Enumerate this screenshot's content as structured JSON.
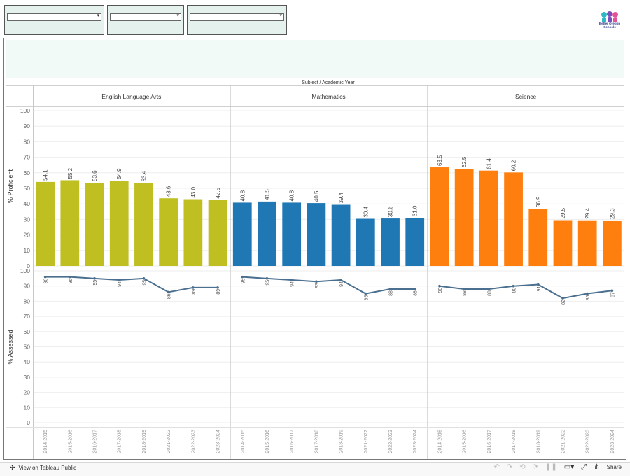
{
  "filters": [
    {
      "name": "filter-1",
      "value": ""
    },
    {
      "name": "filter-2",
      "value": ""
    },
    {
      "name": "filter-3",
      "value": ""
    }
  ],
  "logo": {
    "text": "Better Oregon Schools"
  },
  "footer": {
    "view_label": "View on Tableau Public",
    "share_label": "Share"
  },
  "colors": {
    "ela": "#bfbf22",
    "math": "#1f77b4",
    "science": "#ff7f0e",
    "line": "#4a6f8f",
    "header_band": "#f1faf7"
  },
  "chart_data": {
    "type": "bar",
    "title": "Subject / Academic Year",
    "categories": [
      "2014-2015",
      "2015-2016",
      "2016-2017",
      "2017-2018",
      "2018-2019",
      "2021-2022",
      "2022-2023",
      "2023-2024"
    ],
    "panels": [
      "English Language Arts",
      "Mathematics",
      "Science"
    ],
    "top": {
      "ylabel": "% Proficient",
      "ylim": [
        0,
        100
      ],
      "ticks": [
        0,
        10,
        20,
        30,
        40,
        50,
        60,
        70,
        80,
        90,
        100
      ],
      "series": [
        {
          "name": "English Language Arts",
          "values": [
            54.1,
            55.2,
            53.6,
            54.9,
            53.4,
            43.6,
            43.0,
            42.5
          ]
        },
        {
          "name": "Mathematics",
          "values": [
            40.8,
            41.5,
            40.8,
            40.5,
            39.4,
            30.4,
            30.6,
            31.0
          ]
        },
        {
          "name": "Science",
          "values": [
            63.5,
            62.5,
            61.4,
            60.2,
            36.9,
            29.5,
            29.4,
            29.3
          ]
        }
      ]
    },
    "bottom": {
      "type": "line",
      "ylabel": "% Assessed",
      "ylim": [
        0,
        100
      ],
      "ticks": [
        0,
        10,
        20,
        30,
        40,
        50,
        60,
        70,
        80,
        90,
        100
      ],
      "series": [
        {
          "name": "English Language Arts",
          "values": [
            96,
            96,
            95,
            94,
            95,
            86,
            89,
            89
          ],
          "labels": [
            "96",
            "96",
            "95",
            "94",
            "95",
            "86",
            "89",
            "89"
          ]
        },
        {
          "name": "Mathematics",
          "values": [
            96,
            95,
            94,
            93,
            94,
            85,
            88,
            88
          ],
          "labels": [
            "96",
            "95",
            "94",
            "93",
            "94",
            "85",
            "88",
            "88"
          ]
        },
        {
          "name": "Science",
          "values": [
            90,
            88,
            88,
            90,
            91,
            82,
            85,
            87
          ],
          "labels": [
            "90",
            "88",
            "88",
            "90",
            "91",
            "82",
            "85",
            "87"
          ]
        }
      ]
    },
    "grid": true,
    "legend": "none"
  }
}
